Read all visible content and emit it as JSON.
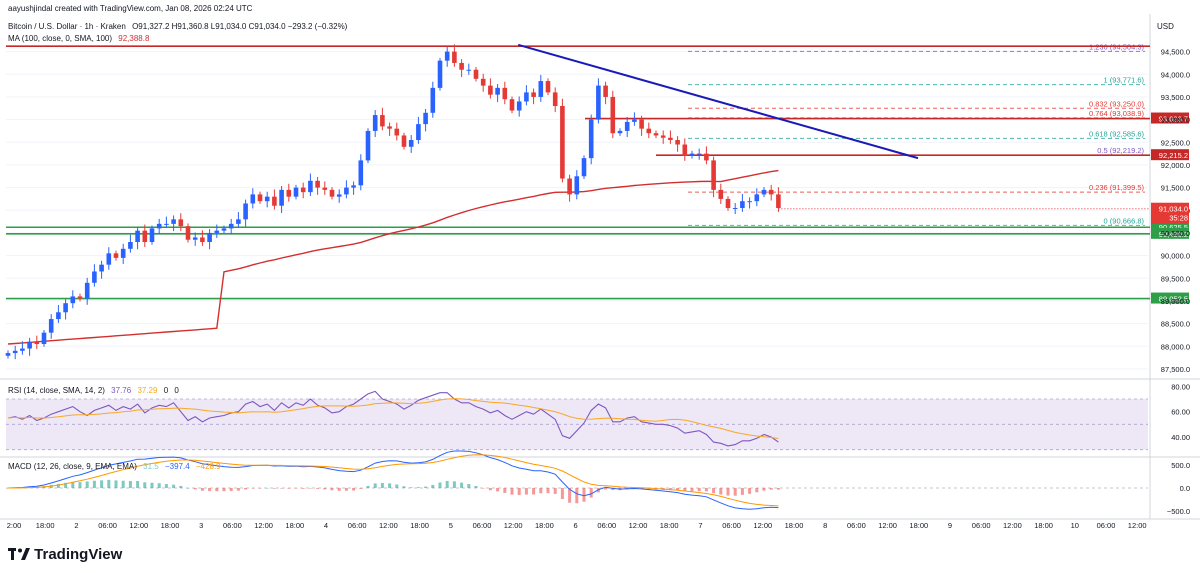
{
  "header": {
    "credit": "aayushjindal created with TradingView.com, Jan 08, 2026 02:24 UTC",
    "symbol_line": "Bitcoin / U.S. Dollar · 1h · Kraken",
    "ohlc": "O91,327.2  H91,360.8  L91,034.0  C91,034.0  −293.2 (−0.32%)",
    "ma_label": "MA (100, close, 0, SMA, 100)",
    "ma_value": "92,388.8",
    "currency": "USD"
  },
  "brand": {
    "name": "TradingView",
    "logo_icon": "tradingview-logo-icon"
  },
  "colors": {
    "up": "#2962ff",
    "down": "#e53935",
    "ma": "#d32f2f",
    "trend": "#1a1ab8",
    "support": "#2e9e48",
    "resistance": "#c62828",
    "rsi": "#7e57c2",
    "rsi_ma": "#f9a825",
    "macd": "#2962ff",
    "signal": "#ff9800"
  },
  "chart_data": {
    "type": "candlestick",
    "title": "Bitcoin / U.S. Dollar · 1h · Kraken",
    "ylim": [
      87300,
      94800
    ],
    "y_ticks": [
      "87,500.0",
      "88,000.0",
      "88,500.0",
      "89,000.0",
      "89,500.0",
      "90,000.0",
      "90,500.0",
      "91,000.0",
      "91,500.0",
      "92,000.0",
      "92,500.0",
      "93,000.0",
      "93,500.0",
      "94,000.0",
      "94,500.0"
    ],
    "x_ticks": [
      "2:00",
      "18:00",
      "2",
      "06:00",
      "12:00",
      "18:00",
      "3",
      "06:00",
      "12:00",
      "18:00",
      "4",
      "06:00",
      "12:00",
      "18:00",
      "5",
      "06:00",
      "12:00",
      "18:00",
      "6",
      "06:00",
      "12:00",
      "18:00",
      "7",
      "06:00",
      "12:00",
      "18:00",
      "8",
      "06:00",
      "12:00",
      "18:00",
      "9",
      "06:00",
      "12:00",
      "18:00",
      "10",
      "06:00",
      "12:00"
    ],
    "closes": [
      87850,
      87900,
      87950,
      88100,
      88050,
      88300,
      88600,
      88750,
      88950,
      89100,
      89050,
      89400,
      89650,
      89800,
      90050,
      89950,
      90150,
      90300,
      90550,
      90300,
      90600,
      90700,
      90700,
      90800,
      90650,
      90350,
      90400,
      90300,
      90500,
      90550,
      90600,
      90700,
      90800,
      91150,
      91350,
      91200,
      91300,
      91100,
      91450,
      91300,
      91500,
      91400,
      91650,
      91500,
      91450,
      91300,
      91350,
      91500,
      91550,
      92100,
      92750,
      93100,
      92850,
      92800,
      92650,
      92400,
      92550,
      92900,
      93150,
      93700,
      94300,
      94500,
      94250,
      94100,
      94100,
      93900,
      93750,
      93550,
      93700,
      93450,
      93200,
      93400,
      93600,
      93500,
      93850,
      93600,
      93300,
      91700,
      91350,
      91750,
      92150,
      93000,
      93750,
      93500,
      92700,
      92750,
      92950,
      93000,
      92800,
      92700,
      92650,
      92600,
      92550,
      92450,
      92200,
      92250,
      92250,
      92100,
      91450,
      91250,
      91050,
      91050,
      91200,
      91200,
      91350,
      91450,
      91350,
      91050
    ],
    "ma100_label": "92,388.8",
    "fib_levels": [
      {
        "level": "1.236",
        "price": 94504.3,
        "label": "1.236 (94,504.3)",
        "color": "#7e57c2"
      },
      {
        "level": "1",
        "price": 93771.6,
        "label": "1 (93,771.6)",
        "color": "#26a69a"
      },
      {
        "level": "0.832",
        "price": 93250.0,
        "label": "0.832 (93,250.0)",
        "color": "#e53935"
      },
      {
        "level": "0.764",
        "price": 93038.9,
        "label": "0.764 (93,038.9)",
        "color": "#e53935"
      },
      {
        "level": "0.618",
        "price": 92585.6,
        "label": "0.618 (92,585.6)",
        "color": "#26a69a"
      },
      {
        "level": "0.5",
        "price": 92219.2,
        "label": "0.5 (92,219.2)",
        "color": "#7e57c2"
      },
      {
        "level": "0.236",
        "price": 91399.5,
        "label": "0.236 (91,399.5)",
        "color": "#e53935"
      },
      {
        "level": "0",
        "price": 90666.8,
        "label": "0 (90,666.8)",
        "color": "#26a69a"
      }
    ],
    "horizontal_lines": [
      {
        "price": 94620,
        "type": "resistance"
      },
      {
        "price": 93023.7,
        "type": "resistance",
        "label": "93,023.7"
      },
      {
        "price": 92215.2,
        "type": "resistance",
        "label": "92,215.2"
      },
      {
        "price": 90625.5,
        "type": "support",
        "label": "90,625.5"
      },
      {
        "price": 90480.2,
        "type": "support",
        "label": "90,480.2"
      },
      {
        "price": 89052.5,
        "type": "support",
        "label": "89,052.5"
      }
    ],
    "price_marker": {
      "price": 91034.0,
      "label": "91,034.0",
      "countdown": "35:28"
    },
    "trendline": {
      "from": {
        "bar": 66,
        "price": 94650
      },
      "to": {
        "bar": 127,
        "price": 92150
      }
    },
    "rsi": {
      "label": "RSI (14, close, SMA, 14, 2)",
      "value1": "37.76",
      "value2": "37.29",
      "value3": "0",
      "value4": "0",
      "ylim": [
        25,
        85
      ],
      "ticks": [
        "80.00",
        "60.00",
        "40.00"
      ],
      "band": [
        30,
        70
      ],
      "values": [
        55,
        56,
        54,
        57,
        53,
        55,
        58,
        60,
        62,
        64,
        60,
        57,
        61,
        63,
        65,
        61,
        64,
        62,
        66,
        59,
        63,
        65,
        64,
        67,
        60,
        53,
        56,
        52,
        55,
        56,
        57,
        59,
        60,
        66,
        68,
        64,
        66,
        61,
        67,
        63,
        67,
        65,
        70,
        65,
        63,
        59,
        60,
        64,
        66,
        70,
        74,
        76,
        70,
        68,
        66,
        62,
        65,
        69,
        71,
        73,
        75,
        75,
        70,
        67,
        67,
        64,
        62,
        59,
        61,
        57,
        54,
        57,
        60,
        58,
        62,
        58,
        54,
        41,
        39,
        45,
        51,
        61,
        66,
        63,
        52,
        52,
        55,
        56,
        52,
        51,
        50,
        50,
        49,
        47,
        43,
        44,
        45,
        42,
        36,
        35,
        33,
        34,
        37,
        37,
        39,
        42,
        40,
        36
      ]
    },
    "macd": {
      "label": "MACD (12, 26, close, 9, EMA, EMA)",
      "hist": "31.5",
      "macd": "−397.4",
      "signal": "−428.9",
      "ylim": [
        -650,
        650
      ],
      "ticks": [
        "500.0",
        "0.0",
        "−500.0"
      ]
    }
  }
}
